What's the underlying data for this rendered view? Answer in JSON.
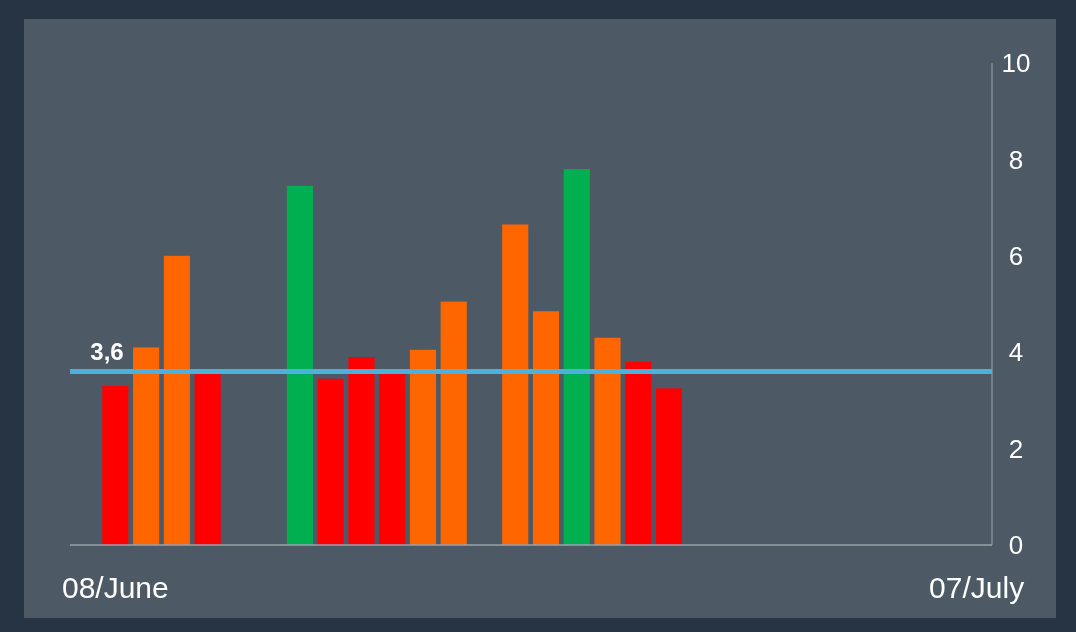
{
  "chart_data": {
    "type": "bar",
    "categories": [
      "08/June",
      null,
      null,
      null,
      null,
      null,
      null,
      null,
      null,
      null,
      null,
      null,
      null,
      null,
      null,
      null,
      null,
      null,
      null,
      null,
      null,
      null,
      null,
      null,
      null,
      null,
      null,
      null,
      "07/July"
    ],
    "values": [
      3.3,
      4.1,
      6.0,
      3.6,
      null,
      null,
      7.45,
      3.45,
      3.9,
      3.6,
      4.05,
      5.05,
      null,
      6.65,
      4.85,
      7.8,
      4.3,
      3.8,
      3.25,
      null,
      null,
      null,
      null,
      null,
      null,
      null,
      null,
      null,
      null
    ],
    "colors": [
      "#ff0000",
      "#ff6600",
      "#ff6600",
      "#ff0000",
      null,
      null,
      "#00b050",
      "#ff0000",
      "#ff0000",
      "#ff0000",
      "#ff6600",
      "#ff6600",
      null,
      "#ff6600",
      "#ff6600",
      "#00b050",
      "#ff6600",
      "#ff0000",
      "#ff0000",
      null,
      null,
      null,
      null,
      null,
      null,
      null,
      null,
      null,
      null
    ],
    "ylim": [
      0,
      10
    ],
    "yticks": [
      0,
      2,
      4,
      6,
      8,
      10
    ],
    "grid": false,
    "ref_lines": [
      {
        "axis": "y",
        "value": 3.6,
        "label": "3,6",
        "color": "#4fb0dc"
      }
    ]
  }
}
